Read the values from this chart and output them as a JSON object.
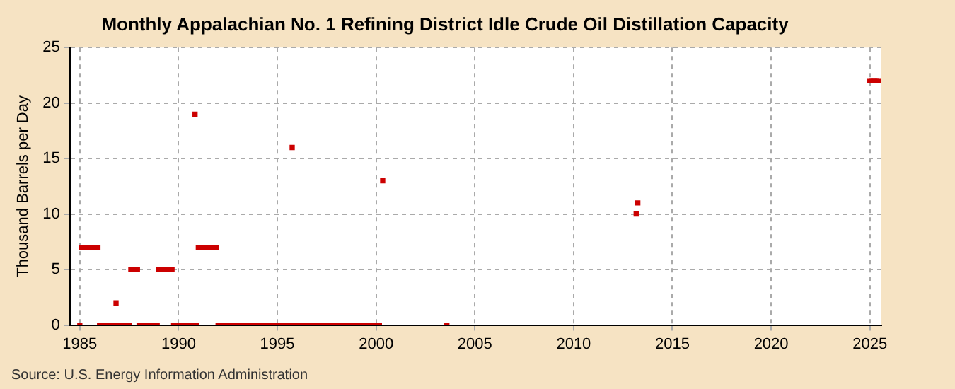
{
  "chart_data": {
    "type": "scatter",
    "title": "Monthly Appalachian No. 1 Refining District Idle Crude Oil Distillation Capacity",
    "ylabel": "Thousand Barrels per Day",
    "annotations": [
      "Source: U.S. Energy Information Administration"
    ],
    "xlim": [
      "1984-07",
      "2025-08"
    ],
    "xticks": [
      {
        "value": "1985",
        "label": "1985"
      },
      {
        "value": "1990",
        "label": "1990"
      },
      {
        "value": "1995",
        "label": "1995"
      },
      {
        "value": "2000",
        "label": "2000"
      },
      {
        "value": "2005",
        "label": "2005"
      },
      {
        "value": "2010",
        "label": "2010"
      },
      {
        "value": "2015",
        "label": "2015"
      },
      {
        "value": "2020",
        "label": "2020"
      },
      {
        "value": "2025",
        "label": "2025"
      }
    ],
    "ylim": [
      0,
      25
    ],
    "yticks": [
      0,
      5,
      10,
      15,
      20,
      25
    ],
    "grid": true,
    "marker": "square",
    "legend": false,
    "series": [
      {
        "color": "#cc0000",
        "x": [
          "1985-01",
          "1985-02",
          "1985-03",
          "1985-04",
          "1985-05",
          "1985-06",
          "1985-07",
          "1985-08",
          "1985-09",
          "1985-10",
          "1985-11",
          "1985-12",
          "1986-01",
          "1986-02",
          "1986-03",
          "1986-04",
          "1986-05",
          "1986-06",
          "1986-07",
          "1986-08",
          "1986-09",
          "1986-10",
          "1986-11",
          "1986-12",
          "1987-01",
          "1987-02",
          "1987-03",
          "1987-04",
          "1987-05",
          "1987-06",
          "1987-07",
          "1987-08",
          "1987-09",
          "1987-10",
          "1987-11",
          "1987-12",
          "1988-01",
          "1988-02",
          "1988-03",
          "1988-04",
          "1988-05",
          "1988-06",
          "1988-07",
          "1988-08",
          "1988-09",
          "1988-10",
          "1988-11",
          "1988-12",
          "1989-01",
          "1989-02",
          "1989-03",
          "1989-04",
          "1989-05",
          "1989-06",
          "1989-07",
          "1989-08",
          "1989-09",
          "1989-10",
          "1989-11",
          "1989-12",
          "1990-01",
          "1990-02",
          "1990-03",
          "1990-04",
          "1990-05",
          "1990-06",
          "1990-07",
          "1990-08",
          "1990-09",
          "1990-10",
          "1990-11",
          "1990-12",
          "1991-01",
          "1991-02",
          "1991-03",
          "1991-04",
          "1991-05",
          "1991-06",
          "1991-07",
          "1991-08",
          "1991-09",
          "1991-10",
          "1991-11",
          "1991-12",
          "1992-01",
          "1992-02",
          "1992-03",
          "1992-04",
          "1992-05",
          "1992-06",
          "1992-07",
          "1992-08",
          "1992-09",
          "1992-10",
          "1992-11",
          "1992-12",
          "1993-01",
          "1993-02",
          "1993-03",
          "1993-04",
          "1993-05",
          "1993-06",
          "1993-07",
          "1993-08",
          "1993-09",
          "1993-10",
          "1993-11",
          "1993-12",
          "1994-01",
          "1994-02",
          "1994-03",
          "1994-04",
          "1994-05",
          "1994-06",
          "1994-07",
          "1994-08",
          "1994-09",
          "1994-10",
          "1994-11",
          "1994-12",
          "1995-01",
          "1995-02",
          "1995-03",
          "1995-04",
          "1995-05",
          "1995-06",
          "1995-07",
          "1995-08",
          "1995-09",
          "1995-10",
          "1995-11",
          "1995-12",
          "1996-01",
          "1996-02",
          "1996-03",
          "1996-04",
          "1996-05",
          "1996-06",
          "1996-07",
          "1996-08",
          "1996-09",
          "1996-10",
          "1996-11",
          "1996-12",
          "1997-01",
          "1997-02",
          "1997-03",
          "1997-04",
          "1997-05",
          "1997-06",
          "1997-07",
          "1997-08",
          "1997-09",
          "1997-10",
          "1997-11",
          "1997-12",
          "1998-01",
          "1998-02",
          "1998-03",
          "1998-04",
          "1998-05",
          "1998-06",
          "1998-07",
          "1998-08",
          "1998-09",
          "1998-10",
          "1998-11",
          "1998-12",
          "1999-01",
          "1999-02",
          "1999-03",
          "1999-04",
          "1999-05",
          "1999-06",
          "1999-07",
          "1999-08",
          "1999-09",
          "1999-10",
          "1999-11",
          "1999-12",
          "2000-01",
          "2000-02",
          "2000-03",
          "2000-05",
          "2003-08",
          "2013-03",
          "2013-04",
          "2025-01",
          "2025-02",
          "2025-03",
          "2025-04",
          "2025-05",
          "2025-06"
        ],
        "values": [
          0,
          7,
          7,
          7,
          7,
          7,
          7,
          7,
          7,
          7,
          7,
          7,
          0,
          0,
          0,
          0,
          0,
          0,
          0,
          0,
          0,
          0,
          2,
          0,
          0,
          0,
          0,
          0,
          0,
          0,
          0,
          5,
          5,
          5,
          5,
          5,
          0,
          0,
          0,
          0,
          0,
          0,
          0,
          0,
          0,
          0,
          0,
          0,
          5,
          5,
          5,
          5,
          5,
          5,
          5,
          5,
          5,
          0,
          0,
          0,
          0,
          0,
          0,
          0,
          0,
          0,
          0,
          0,
          0,
          0,
          19,
          0,
          7,
          7,
          7,
          7,
          7,
          7,
          7,
          7,
          7,
          7,
          7,
          7,
          0,
          0,
          0,
          0,
          0,
          0,
          0,
          0,
          0,
          0,
          0,
          0,
          0,
          0,
          0,
          0,
          0,
          0,
          0,
          0,
          0,
          0,
          0,
          0,
          0,
          0,
          0,
          0,
          0,
          0,
          0,
          0,
          0,
          0,
          0,
          0,
          0,
          0,
          0,
          0,
          0,
          0,
          0,
          0,
          0,
          16,
          0,
          0,
          0,
          0,
          0,
          0,
          0,
          0,
          0,
          0,
          0,
          0,
          0,
          0,
          0,
          0,
          0,
          0,
          0,
          0,
          0,
          0,
          0,
          0,
          0,
          0,
          0,
          0,
          0,
          0,
          0,
          0,
          0,
          0,
          0,
          0,
          0,
          0,
          0,
          0,
          0,
          0,
          0,
          0,
          0,
          0,
          0,
          0,
          0,
          0,
          0,
          0,
          0,
          13,
          0,
          10,
          11,
          22,
          22,
          22,
          22,
          22,
          22
        ]
      }
    ]
  }
}
